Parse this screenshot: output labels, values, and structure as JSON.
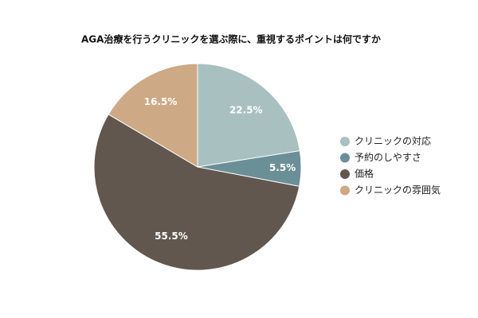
{
  "chart_data": {
    "type": "pie",
    "title": "AGA治療を行うクリニックを選ぶ際に、重視するポイントは何ですか",
    "categories": [
      "クリニックの対応",
      "予約のしやすさ",
      "価格",
      "クリニックの雰囲気"
    ],
    "values": [
      22.5,
      5.5,
      55.5,
      16.5
    ],
    "value_labels": [
      "22.5%",
      "5.5%",
      "55.5%",
      "16.5%"
    ],
    "colors": [
      "#a8c0c0",
      "#6b8f97",
      "#62574e",
      "#cea985"
    ],
    "legend": "right"
  }
}
